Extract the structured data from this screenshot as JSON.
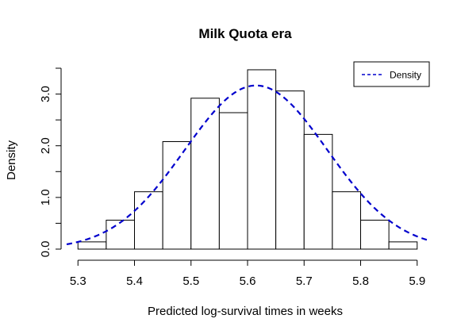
{
  "chart_data": {
    "type": "histogram",
    "title": "Milk Quota era",
    "xlabel": "Predicted log-survival times in weeks",
    "ylabel": "Density",
    "xlim": [
      5.28,
      5.92
    ],
    "ylim": [
      0,
      3.5
    ],
    "x_ticks": [
      5.3,
      5.4,
      5.5,
      5.6,
      5.7,
      5.8,
      5.9
    ],
    "x_tick_labels": [
      "5.3",
      "5.4",
      "5.5",
      "5.6",
      "5.7",
      "5.8",
      "5.9"
    ],
    "y_ticks": [
      0.0,
      0.5,
      1.0,
      1.5,
      2.0,
      2.5,
      3.0,
      3.5
    ],
    "y_tick_labels": [
      "0.0",
      "1.0",
      "2.0",
      "3.0"
    ],
    "bins": [
      {
        "start": 5.3,
        "end": 5.35,
        "density": 0.14
      },
      {
        "start": 5.35,
        "end": 5.4,
        "density": 0.56
      },
      {
        "start": 5.4,
        "end": 5.45,
        "density": 1.11
      },
      {
        "start": 5.45,
        "end": 5.5,
        "density": 2.08
      },
      {
        "start": 5.5,
        "end": 5.55,
        "density": 2.92
      },
      {
        "start": 5.55,
        "end": 5.6,
        "density": 2.64
      },
      {
        "start": 5.6,
        "end": 5.65,
        "density": 3.47
      },
      {
        "start": 5.65,
        "end": 5.7,
        "density": 3.06
      },
      {
        "start": 5.7,
        "end": 5.75,
        "density": 2.22
      },
      {
        "start": 5.75,
        "end": 5.8,
        "density": 1.11
      },
      {
        "start": 5.8,
        "end": 5.85,
        "density": 0.56
      },
      {
        "start": 5.85,
        "end": 5.9,
        "density": 0.14
      }
    ],
    "density_curve": {
      "name": "Density",
      "style": "dashed",
      "color": "#0000cd",
      "mean": 5.615,
      "sd": 0.126,
      "x_range": [
        5.28,
        5.92
      ]
    },
    "legend": {
      "position": "top-right",
      "entries": [
        "Density"
      ]
    },
    "grid": false
  }
}
